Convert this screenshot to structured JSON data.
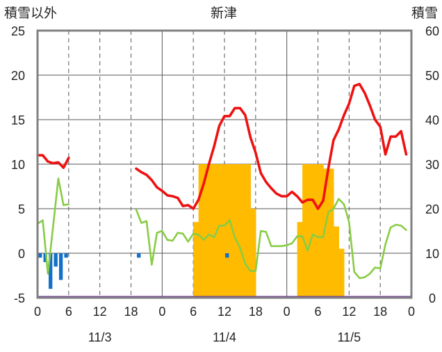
{
  "chart_data": {
    "type": "line",
    "title": "新津",
    "y_left_label": "積雪以外",
    "y_right_label": "積雪",
    "y_left_lim": [
      -5,
      25
    ],
    "y_right_lim": [
      0,
      60
    ],
    "y_left_ticks": [
      "25",
      "20",
      "15",
      "10",
      "5",
      "0",
      "-5"
    ],
    "y_right_ticks": [
      "60",
      "50",
      "40",
      "30",
      "20",
      "10",
      "0"
    ],
    "x_range_hours": [
      0,
      72
    ],
    "x_tick_labels": [
      "0",
      "6",
      "12",
      "18",
      "0",
      "6",
      "12",
      "18",
      "0",
      "6",
      "12",
      "18",
      "0"
    ],
    "date_labels": [
      "11/3",
      "11/4",
      "11/5"
    ],
    "grid": true,
    "series": [
      {
        "name": "temperature",
        "color": "#ee1111",
        "axis": "left",
        "segments": [
          [
            [
              0,
              11.0
            ],
            [
              1,
              11.0
            ],
            [
              2,
              10.3
            ],
            [
              3,
              10.1
            ],
            [
              4,
              10.2
            ],
            [
              5,
              9.6
            ],
            [
              6,
              10.7
            ]
          ],
          [
            [
              19,
              9.5
            ],
            [
              20,
              9.1
            ],
            [
              21,
              8.8
            ],
            [
              22,
              8.2
            ],
            [
              23,
              7.4
            ],
            [
              24,
              7.0
            ],
            [
              25,
              6.5
            ],
            [
              26,
              6.4
            ],
            [
              27,
              6.2
            ],
            [
              28,
              5.3
            ],
            [
              29,
              5.4
            ],
            [
              30,
              5.0
            ],
            [
              31,
              6.0
            ],
            [
              32,
              7.8
            ],
            [
              33,
              10.0
            ],
            [
              34,
              12.0
            ],
            [
              35,
              14.3
            ],
            [
              36,
              15.4
            ],
            [
              37,
              15.4
            ],
            [
              38,
              16.3
            ],
            [
              39,
              16.3
            ],
            [
              40,
              15.5
            ],
            [
              41,
              13.0
            ],
            [
              42,
              11.3
            ],
            [
              43,
              9.0
            ],
            [
              44,
              8.0
            ],
            [
              45,
              7.3
            ],
            [
              46,
              6.7
            ],
            [
              47,
              6.4
            ],
            [
              48,
              6.4
            ],
            [
              49,
              6.9
            ],
            [
              50,
              6.4
            ],
            [
              51,
              5.7
            ],
            [
              52,
              6.0
            ],
            [
              53,
              6.0
            ],
            [
              54,
              5.0
            ],
            [
              55,
              5.9
            ],
            [
              56,
              9.5
            ],
            [
              57,
              12.7
            ],
            [
              58,
              13.9
            ],
            [
              59,
              15.5
            ],
            [
              60,
              16.8
            ],
            [
              61,
              18.8
            ],
            [
              62,
              19.0
            ],
            [
              63,
              18.0
            ],
            [
              64,
              16.6
            ],
            [
              65,
              15.0
            ],
            [
              66,
              14.2
            ],
            [
              67,
              11.1
            ],
            [
              68,
              13.1
            ],
            [
              69,
              13.1
            ],
            [
              70,
              13.7
            ],
            [
              71,
              11.1
            ]
          ]
        ]
      },
      {
        "name": "wind",
        "color": "#88cc44",
        "axis": "left",
        "segments": [
          [
            [
              0,
              3.3
            ],
            [
              1,
              3.7
            ],
            [
              2,
              -2.3
            ],
            [
              3,
              3.0
            ],
            [
              4,
              8.4
            ],
            [
              5,
              5.4
            ],
            [
              6,
              5.5
            ]
          ],
          [
            [
              19,
              4.9
            ],
            [
              20,
              3.4
            ],
            [
              21,
              3.6
            ],
            [
              22,
              -1.3
            ],
            [
              23,
              2.3
            ],
            [
              24,
              2.5
            ],
            [
              25,
              1.5
            ],
            [
              26,
              1.4
            ],
            [
              27,
              2.3
            ],
            [
              28,
              2.2
            ],
            [
              29,
              1.3
            ],
            [
              30,
              2.2
            ],
            [
              31,
              2.1
            ],
            [
              32,
              1.5
            ],
            [
              33,
              2.1
            ],
            [
              34,
              1.8
            ],
            [
              35,
              3.1
            ],
            [
              36,
              3.1
            ],
            [
              37,
              3.7
            ],
            [
              38,
              1.8
            ],
            [
              39,
              0.6
            ],
            [
              40,
              -1.2
            ],
            [
              41,
              -2.0
            ],
            [
              42,
              -2.0
            ],
            [
              43,
              2.5
            ],
            [
              44,
              2.4
            ],
            [
              45,
              0.8
            ],
            [
              46,
              0.8
            ],
            [
              47,
              0.8
            ],
            [
              48,
              0.9
            ],
            [
              49,
              1.1
            ],
            [
              50,
              1.9
            ],
            [
              51,
              1.9
            ],
            [
              52,
              0.3
            ],
            [
              53,
              2.1
            ],
            [
              54,
              1.8
            ],
            [
              55,
              1.8
            ],
            [
              56,
              4.6
            ],
            [
              57,
              5.0
            ],
            [
              58,
              6.1
            ],
            [
              59,
              5.5
            ],
            [
              60,
              3.5
            ],
            [
              61,
              -2.1
            ],
            [
              62,
              -2.8
            ],
            [
              63,
              -2.7
            ],
            [
              64,
              -2.3
            ],
            [
              65,
              -1.6
            ],
            [
              66,
              -1.7
            ],
            [
              67,
              1.0
            ],
            [
              68,
              2.9
            ],
            [
              69,
              3.2
            ],
            [
              70,
              3.1
            ],
            [
              71,
              2.6
            ]
          ]
        ]
      },
      {
        "name": "snow_depth",
        "color": "#ffbb00",
        "axis": "right",
        "bars": [
          [
            30,
            17
          ],
          [
            31,
            30
          ],
          [
            32,
            30
          ],
          [
            33,
            30
          ],
          [
            34,
            30
          ],
          [
            35,
            30
          ],
          [
            36,
            30
          ],
          [
            37,
            30
          ],
          [
            38,
            30
          ],
          [
            39,
            30
          ],
          [
            40,
            30
          ],
          [
            41,
            20
          ],
          [
            50,
            17
          ],
          [
            51,
            30
          ],
          [
            52,
            30
          ],
          [
            53,
            30
          ],
          [
            54,
            30
          ],
          [
            55,
            29
          ],
          [
            56,
            29
          ],
          [
            57,
            16
          ],
          [
            58,
            11
          ]
        ]
      },
      {
        "name": "precipitation",
        "color": "#1470c8",
        "axis": "left",
        "bars": [
          [
            0,
            -0.5
          ],
          [
            1,
            -1.0
          ],
          [
            2,
            -4.0
          ],
          [
            3,
            -1.5
          ],
          [
            4,
            -3.0
          ],
          [
            5,
            -0.5
          ],
          [
            19,
            -0.5
          ],
          [
            36,
            -0.5
          ]
        ]
      }
    ]
  }
}
